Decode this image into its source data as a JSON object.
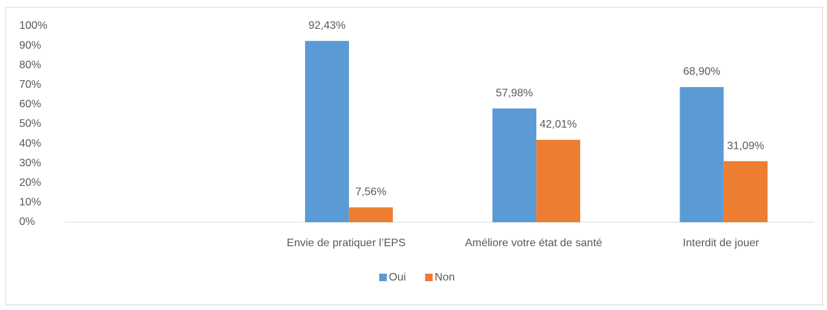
{
  "chart_data": {
    "type": "bar",
    "categories": [
      null,
      "Envie de pratiquer l’EPS",
      "Améliore votre état de santé",
      "Interdit de jouer"
    ],
    "series": [
      {
        "name": "Oui",
        "color": "#5b9bd5",
        "values": [
          null,
          92.43,
          57.98,
          68.9
        ],
        "value_labels": [
          null,
          "92,43%",
          "57,98%",
          "68,90%"
        ]
      },
      {
        "name": "Non",
        "color": "#ed7d31",
        "values": [
          null,
          7.56,
          42.01,
          31.09
        ],
        "value_labels": [
          null,
          "7,56%",
          "42,01%",
          "31,09%"
        ]
      }
    ],
    "ylim": [
      0,
      100
    ],
    "yticks": [
      {
        "value": 0,
        "label": "0%"
      },
      {
        "value": 10,
        "label": "10%"
      },
      {
        "value": 20,
        "label": "20%"
      },
      {
        "value": 30,
        "label": "30%"
      },
      {
        "value": 40,
        "label": "40%"
      },
      {
        "value": 50,
        "label": "50%"
      },
      {
        "value": 60,
        "label": "60%"
      },
      {
        "value": 70,
        "label": "70%"
      },
      {
        "value": 80,
        "label": "80%"
      },
      {
        "value": 90,
        "label": "90%"
      },
      {
        "value": 100,
        "label": "100%"
      }
    ],
    "grid": false,
    "legend": "bottom"
  }
}
